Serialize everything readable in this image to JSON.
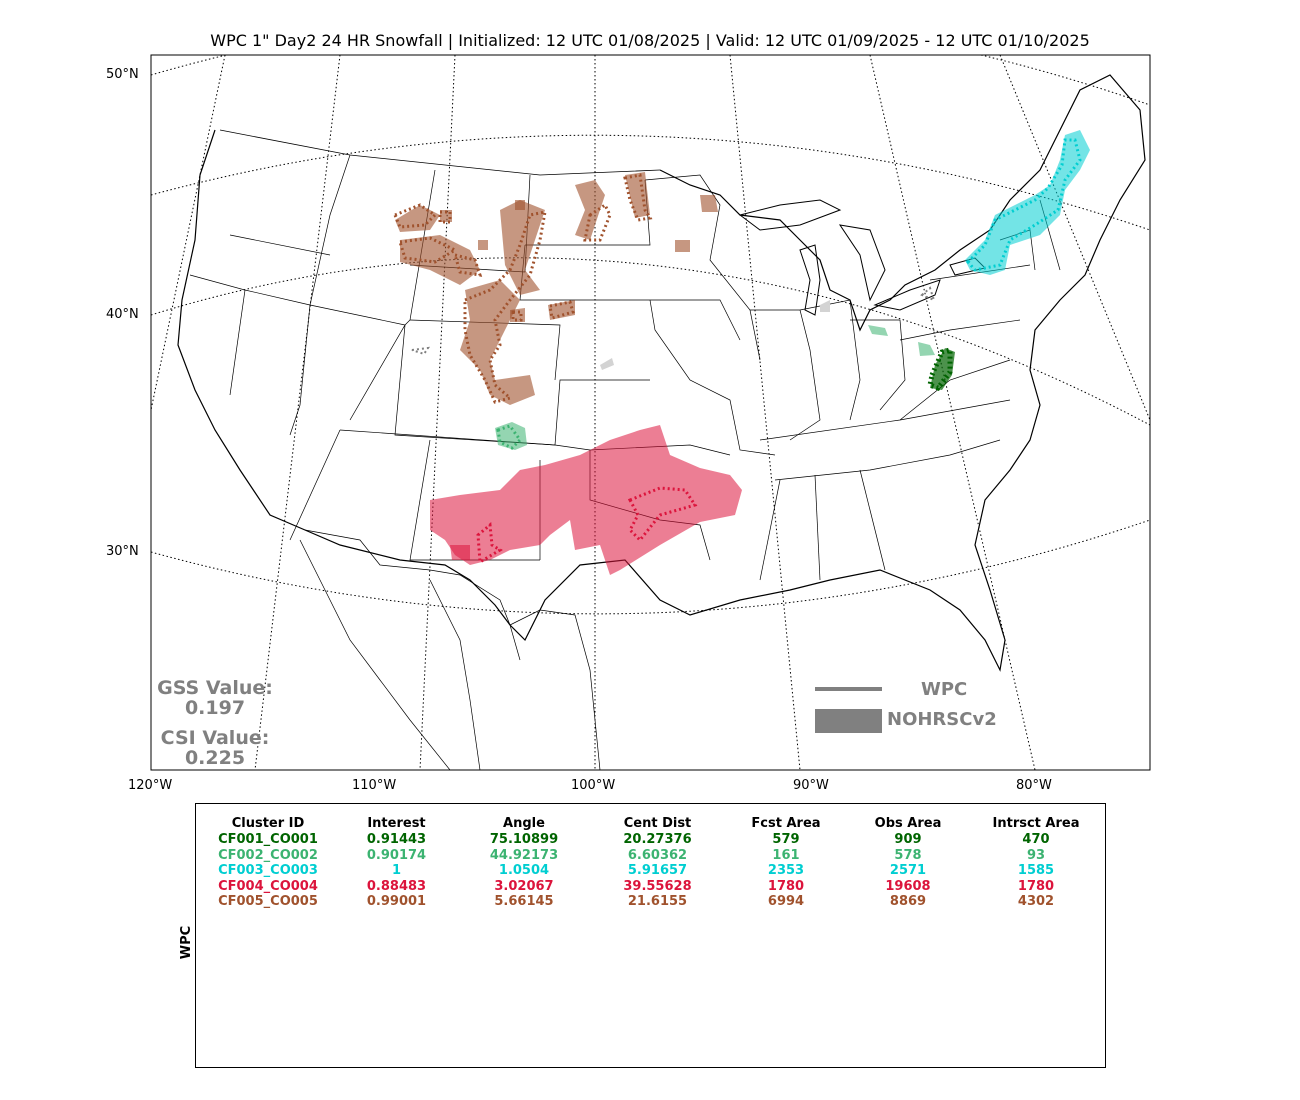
{
  "title": "WPC 1\" Day2 24 HR Snowfall | Initialized: 12 UTC 01/08/2025 | Valid: 12 UTC 01/09/2025 - 12 UTC 01/10/2025",
  "latitude_labels": [
    "50°N",
    "40°N",
    "30°N"
  ],
  "longitude_labels": [
    "120°W",
    "110°W",
    "100°W",
    "90°W",
    "80°W"
  ],
  "stats": {
    "gss_label": "GSS Value:",
    "gss_value": "0.197",
    "csi_label": "CSI Value:",
    "csi_value": "0.225"
  },
  "legend": {
    "wpc_label": "WPC",
    "nohrsc_label": "NOHRSCv2",
    "color": "#808080"
  },
  "table": {
    "side_label": "WPC",
    "headers": [
      "Cluster ID",
      "Interest",
      "Angle",
      "Cent Dist",
      "Fcst Area",
      "Obs Area",
      "Intrsct Area"
    ],
    "rows": [
      {
        "color": "#006400",
        "cells": [
          "CF001_CO001",
          "0.91443",
          "75.10899",
          "20.27376",
          "579",
          "909",
          "470"
        ]
      },
      {
        "color": "#3cb371",
        "cells": [
          "CF002_CO002",
          "0.90174",
          "44.92173",
          "6.60362",
          "161",
          "578",
          "93"
        ]
      },
      {
        "color": "#00ced1",
        "cells": [
          "CF003_CO003",
          "1",
          "1.0504",
          "5.91657",
          "2353",
          "2571",
          "1585"
        ]
      },
      {
        "color": "#dc143c",
        "cells": [
          "CF004_CO004",
          "0.88483",
          "3.02067",
          "39.55628",
          "1780",
          "19608",
          "1780"
        ]
      },
      {
        "color": "#a0522d",
        "cells": [
          "CF005_CO005",
          "0.99001",
          "5.66145",
          "21.6155",
          "6994",
          "8869",
          "4302"
        ]
      }
    ]
  },
  "cluster_colors": {
    "CF001": "#006400",
    "CF002": "#3cb371",
    "CF003": "#00ced1",
    "CF004": "#dc143c",
    "CF005": "#a0522d"
  }
}
